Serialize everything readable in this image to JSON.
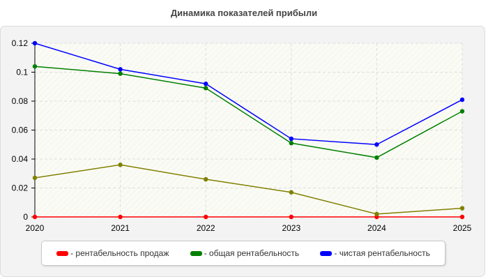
{
  "chart_data": {
    "type": "line",
    "title": "Динамика показателей прибыли",
    "xlabel": "",
    "ylabel": "",
    "x": [
      "2020",
      "2021",
      "2022",
      "2023",
      "2024",
      "2025"
    ],
    "ylim": [
      0,
      0.12
    ],
    "yticks": [
      "0",
      "0.02",
      "0.04",
      "0.06",
      "0.08",
      "0.1",
      "0.12"
    ],
    "grid": true,
    "legend_position": "bottom",
    "series": [
      {
        "name": "- рентабельность продаж",
        "color": "#ff0000",
        "values": [
          0,
          0,
          0,
          0,
          0,
          0
        ]
      },
      {
        "name": "",
        "color": "#808000",
        "values": [
          0.027,
          0.036,
          0.026,
          0.017,
          0.002,
          0.006
        ]
      },
      {
        "name": "- общая рентабельность",
        "color": "#008000",
        "values": [
          0.104,
          0.099,
          0.089,
          0.051,
          0.041,
          0.073
        ]
      },
      {
        "name": "- чистая рентабельность",
        "color": "#0000ff",
        "values": [
          0.12,
          0.102,
          0.092,
          0.054,
          0.05,
          0.081
        ]
      }
    ]
  }
}
